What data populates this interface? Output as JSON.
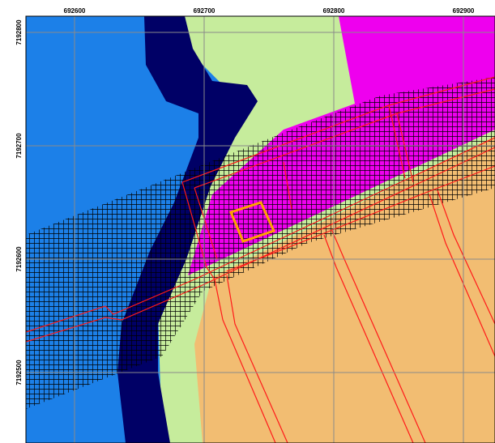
{
  "map": {
    "xticks": [
      692600,
      692700,
      692800,
      692900
    ],
    "yticks": [
      7192800,
      7192700,
      7192600,
      7192500
    ]
  }
}
